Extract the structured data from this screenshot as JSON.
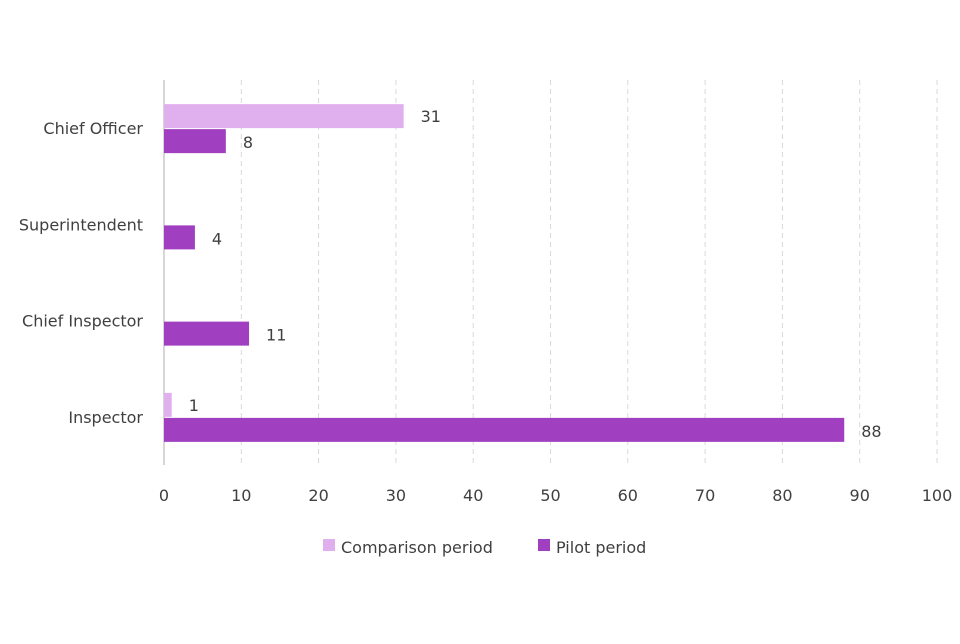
{
  "chart_data": {
    "type": "bar",
    "orientation": "horizontal",
    "title": "",
    "xlabel": "",
    "ylabel": "",
    "categories": [
      "Chief Officer",
      "Superintendent",
      "Chief Inspector",
      "Inspector"
    ],
    "series": [
      {
        "name": "Comparison period",
        "color": "#E0B0EE",
        "values": [
          31,
          null,
          null,
          1
        ]
      },
      {
        "name": "Pilot period",
        "color": "#A040C0",
        "values": [
          8,
          4,
          11,
          88
        ]
      }
    ],
    "xlim": [
      0,
      100
    ],
    "xticks": [
      0,
      10,
      20,
      30,
      40,
      50,
      60,
      70,
      80,
      90,
      100
    ],
    "grid": "vertical dashed",
    "legend": "bottom",
    "data_labels": true
  }
}
